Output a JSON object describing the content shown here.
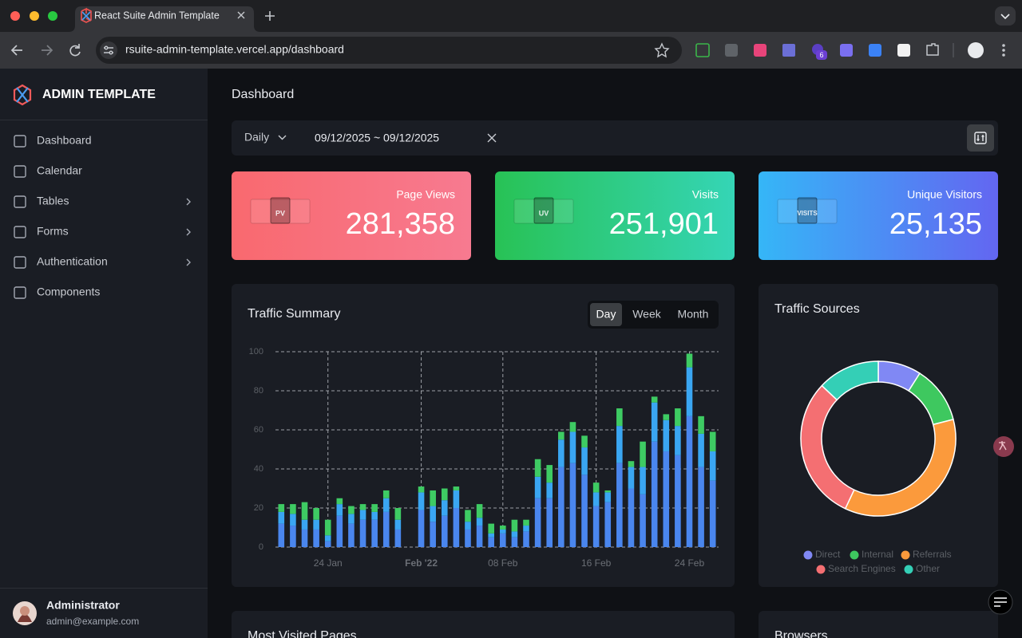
{
  "browser": {
    "tab_title": "React Suite Admin Template",
    "url": "rsuite-admin-template.vercel.app/dashboard",
    "extension_badge": "6"
  },
  "sidebar": {
    "brand": "ADMIN TEMPLATE",
    "nav": [
      {
        "label": "Dashboard",
        "has_submenu": false
      },
      {
        "label": "Calendar",
        "has_submenu": false
      },
      {
        "label": "Tables",
        "has_submenu": true
      },
      {
        "label": "Forms",
        "has_submenu": true
      },
      {
        "label": "Authentication",
        "has_submenu": true
      },
      {
        "label": "Components",
        "has_submenu": false
      }
    ],
    "user": {
      "name": "Administrator",
      "email": "admin@example.com"
    }
  },
  "header": {
    "title": "Dashboard"
  },
  "filter": {
    "period": "Daily",
    "date_range": "09/12/2025 ~ 09/12/2025"
  },
  "stats": [
    {
      "label": "Page Views",
      "value": "281,358",
      "icon_text": "PV"
    },
    {
      "label": "Visits",
      "value": "251,901",
      "icon_text": "UV"
    },
    {
      "label": "Unique Visitors",
      "value": "25,135",
      "icon_text": "VISITS"
    }
  ],
  "traffic_summary": {
    "title": "Traffic Summary",
    "tabs": [
      {
        "label": "Day",
        "active": true
      },
      {
        "label": "Week",
        "active": false
      },
      {
        "label": "Month",
        "active": false
      }
    ],
    "chart": {
      "type": "stacked_bar",
      "categories": [
        null,
        null,
        null,
        null,
        "24 Jan",
        null,
        null,
        null,
        null,
        null,
        null,
        null,
        "Feb '22",
        null,
        null,
        null,
        null,
        null,
        null,
        "08 Feb",
        null,
        null,
        null,
        null,
        null,
        null,
        null,
        "16 Feb",
        null,
        null,
        null,
        null,
        null,
        null,
        null,
        "24 Feb",
        null,
        null
      ],
      "series": [
        {
          "color": "#4a86ee",
          "values": [
            12,
            11,
            9,
            9,
            3,
            16,
            12,
            14,
            14,
            18,
            9,
            null,
            19,
            13,
            16,
            20,
            9,
            11,
            5,
            7,
            5,
            8,
            25,
            25,
            41,
            43,
            37,
            21,
            23,
            43,
            30,
            27,
            54,
            49,
            47,
            67,
            41,
            34
          ]
        },
        {
          "color": "#3aa6f2",
          "values": [
            6,
            6,
            5,
            5,
            3,
            6,
            5,
            5,
            4,
            7,
            5,
            null,
            9,
            8,
            8,
            9,
            4,
            4,
            2,
            2,
            3,
            3,
            11,
            8,
            14,
            16,
            14,
            7,
            5,
            19,
            11,
            14,
            20,
            16,
            15,
            25,
            17,
            15
          ]
        },
        {
          "color": "#3ecb63",
          "values": [
            4,
            5,
            9,
            6,
            8,
            3,
            4,
            3,
            4,
            4,
            6,
            null,
            3,
            8,
            6,
            2,
            6,
            7,
            5,
            2,
            6,
            3,
            9,
            9,
            4,
            5,
            6,
            5,
            1,
            9,
            3,
            13,
            3,
            3,
            9,
            7,
            9,
            10
          ]
        }
      ],
      "ylim": [
        0,
        100
      ],
      "yticks": [
        0,
        20,
        40,
        60,
        80,
        100
      ],
      "grid": true
    }
  },
  "traffic_sources": {
    "title": "Traffic Sources",
    "chart": {
      "type": "donut",
      "categories": [
        "Direct",
        "Internal",
        "Referrals",
        "Search Engines",
        "Other"
      ],
      "values": [
        9,
        12,
        36,
        30,
        13
      ],
      "colors": [
        "#8088f4",
        "#3ec85f",
        "#fb9a3c",
        "#f46f72",
        "#34cfb6"
      ]
    }
  },
  "bottom_cards": {
    "most_visited_pages": "Most Visited Pages",
    "browsers": "Browsers"
  }
}
